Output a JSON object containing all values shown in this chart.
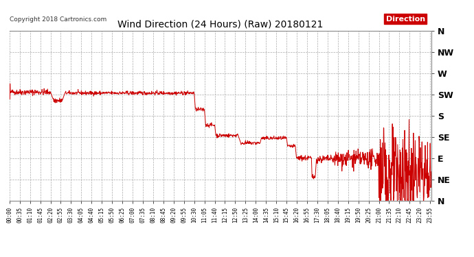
{
  "title": "Wind Direction (24 Hours) (Raw) 20180121",
  "copyright": "Copyright 2018 Cartronics.com",
  "legend_label": "Direction",
  "legend_bg": "#cc0000",
  "legend_text_color": "#ffffff",
  "line_color": "#cc0000",
  "background_color": "#ffffff",
  "grid_color": "#aaaaaa",
  "ytick_labels": [
    "N",
    "NW",
    "W",
    "SW",
    "S",
    "SE",
    "E",
    "NE",
    "N"
  ],
  "ytick_values": [
    360,
    315,
    270,
    225,
    180,
    135,
    90,
    45,
    0
  ],
  "ylim": [
    0,
    360
  ],
  "xtick_interval_minutes": 35,
  "total_minutes": 1440,
  "figsize": [
    6.9,
    3.75
  ],
  "dpi": 100
}
